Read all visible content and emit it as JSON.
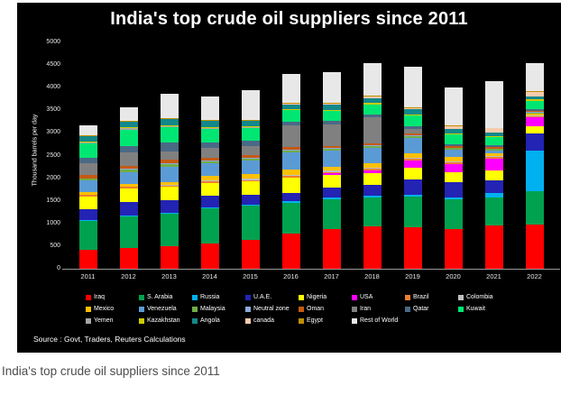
{
  "page": {
    "caption": "India's top crude oil suppliers since 2011"
  },
  "panel": {
    "background": "#000000",
    "source": "Source : Govt, Traders, Reuters Calculations"
  },
  "chart_data": {
    "type": "bar",
    "stacked": true,
    "title": "India's top crude oil suppliers since 2011",
    "xlabel": "",
    "ylabel": "Thousand barrels per day",
    "ylim": [
      0,
      5000
    ],
    "ytick_interval": 500,
    "yticks": [
      0,
      500,
      1000,
      1500,
      2000,
      2500,
      3000,
      3500,
      4000,
      4500,
      5000
    ],
    "grid": false,
    "legend_position": "bottom",
    "categories": [
      "2011",
      "2012",
      "2013",
      "2014",
      "2015",
      "2016",
      "2017",
      "2018",
      "2019",
      "2020",
      "2021",
      "2022"
    ],
    "series": [
      {
        "name": "Iraq",
        "color": "#ff0000",
        "values": [
          420,
          460,
          500,
          560,
          640,
          780,
          870,
          940,
          920,
          870,
          950,
          970
        ]
      },
      {
        "name": "S. Arabia",
        "color": "#00a14f",
        "values": [
          630,
          700,
          710,
          780,
          760,
          680,
          670,
          640,
          680,
          660,
          620,
          750
        ]
      },
      {
        "name": "Russia",
        "color": "#00b0f0",
        "values": [
          20,
          20,
          20,
          20,
          20,
          30,
          30,
          40,
          40,
          50,
          100,
          900
        ]
      },
      {
        "name": "U.A.E.",
        "color": "#2323b4",
        "values": [
          250,
          300,
          280,
          260,
          220,
          190,
          220,
          240,
          330,
          330,
          280,
          370
        ]
      },
      {
        "name": "Nigeria",
        "color": "#ffff00",
        "values": [
          280,
          300,
          300,
          280,
          290,
          330,
          290,
          250,
          260,
          220,
          230,
          150
        ]
      },
      {
        "name": "USA",
        "color": "#ff00ff",
        "values": [
          0,
          0,
          0,
          0,
          0,
          10,
          30,
          60,
          160,
          190,
          250,
          200
        ]
      },
      {
        "name": "Brazil",
        "color": "#ed7d31",
        "values": [
          30,
          30,
          30,
          30,
          30,
          30,
          30,
          40,
          40,
          40,
          40,
          30
        ]
      },
      {
        "name": "Colombia",
        "color": "#bfbfbf",
        "values": [
          10,
          10,
          10,
          30,
          40,
          30,
          30,
          30,
          30,
          20,
          20,
          10
        ]
      },
      {
        "name": "Mexico",
        "color": "#ffc000",
        "values": [
          60,
          60,
          60,
          90,
          100,
          110,
          90,
          100,
          100,
          100,
          70,
          40
        ]
      },
      {
        "name": "Venezuela",
        "color": "#5b9bd5",
        "values": [
          250,
          260,
          350,
          280,
          300,
          390,
          350,
          340,
          320,
          160,
          60,
          0
        ]
      },
      {
        "name": "Malaysia",
        "color": "#70ad47",
        "values": [
          40,
          60,
          60,
          40,
          40,
          40,
          40,
          40,
          40,
          30,
          30,
          30
        ]
      },
      {
        "name": "Neutral zone",
        "color": "#8ea9db",
        "values": [
          10,
          10,
          20,
          20,
          20,
          20,
          20,
          20,
          20,
          10,
          10,
          10
        ]
      },
      {
        "name": "Oman",
        "color": "#c55a11",
        "values": [
          70,
          70,
          70,
          60,
          50,
          50,
          40,
          40,
          40,
          30,
          30,
          30
        ]
      },
      {
        "name": "Iran",
        "color": "#808080",
        "values": [
          260,
          300,
          180,
          220,
          210,
          470,
          480,
          560,
          110,
          0,
          0,
          0
        ]
      },
      {
        "name": "Qatar",
        "color": "#4a6985",
        "values": [
          120,
          130,
          200,
          120,
          110,
          90,
          80,
          70,
          60,
          50,
          40,
          30
        ]
      },
      {
        "name": "Kuwait",
        "color": "#00e673",
        "values": [
          320,
          370,
          330,
          310,
          290,
          250,
          220,
          220,
          230,
          220,
          180,
          190
        ]
      },
      {
        "name": "Yemen",
        "color": "#a6a6a6",
        "values": [
          30,
          30,
          30,
          20,
          10,
          0,
          0,
          0,
          0,
          0,
          0,
          0
        ]
      },
      {
        "name": "Kazakhstan",
        "color": "#cccc00",
        "values": [
          20,
          20,
          20,
          20,
          20,
          20,
          20,
          30,
          30,
          20,
          30,
          40
        ]
      },
      {
        "name": "Angola",
        "color": "#12888a",
        "values": [
          120,
          130,
          130,
          120,
          110,
          110,
          120,
          110,
          110,
          90,
          80,
          60
        ]
      },
      {
        "name": "canada",
        "color": "#f8cbad",
        "values": [
          0,
          0,
          0,
          0,
          10,
          10,
          20,
          30,
          30,
          60,
          90,
          100
        ]
      },
      {
        "name": "Egypt",
        "color": "#bf8f00",
        "values": [
          20,
          20,
          20,
          20,
          20,
          20,
          20,
          20,
          20,
          10,
          10,
          20
        ]
      },
      {
        "name": "Rest of World",
        "color": "#e8e8e8",
        "values": [
          200,
          280,
          550,
          520,
          660,
          640,
          680,
          730,
          890,
          840,
          1030,
          620
        ]
      }
    ]
  }
}
